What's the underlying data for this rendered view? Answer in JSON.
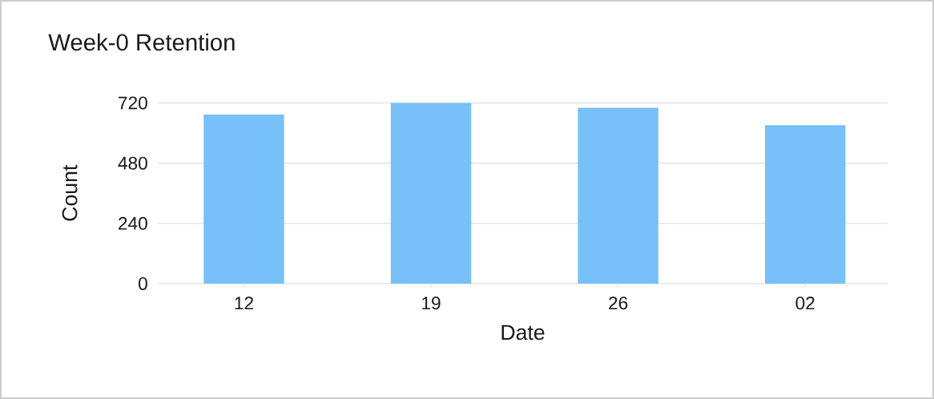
{
  "chart_data": {
    "type": "bar",
    "title": "Week-0 Retention",
    "xlabel": "Date",
    "ylabel": "Count",
    "categories": [
      "12",
      "19",
      "26",
      "02"
    ],
    "values": [
      674,
      720,
      701,
      631
    ],
    "color": "#77c0f8",
    "ylim": [
      0,
      720
    ],
    "yticks": [
      0,
      240,
      480,
      720
    ],
    "grid": "y"
  }
}
